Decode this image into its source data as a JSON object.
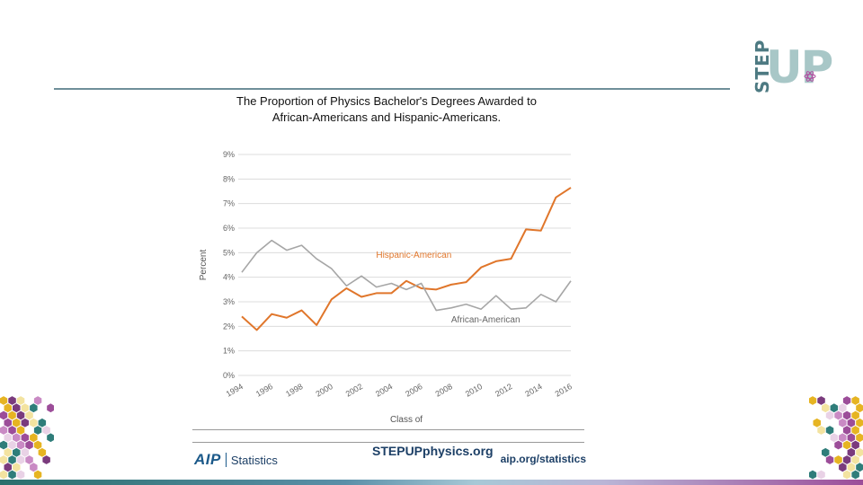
{
  "logo": {
    "step": "STEP",
    "up": "UP"
  },
  "chart_data": {
    "type": "line",
    "title_line1": "The Proportion of Physics Bachelor's Degrees Awarded to",
    "title_line2": "African-Americans and Hispanic-Americans.",
    "xlabel": "Class of",
    "ylabel": "Percent",
    "ylim": [
      0,
      9
    ],
    "yticks": [
      0,
      1,
      2,
      3,
      4,
      5,
      6,
      7,
      8,
      9
    ],
    "ytick_labels": [
      "0%",
      "1%",
      "2%",
      "3%",
      "4%",
      "5%",
      "6%",
      "7%",
      "8%",
      "9%"
    ],
    "xtick_labels": [
      "1994",
      "1996",
      "1998",
      "2000",
      "2002",
      "2004",
      "2006",
      "2008",
      "2010",
      "2012",
      "2014",
      "2016"
    ],
    "grid": true,
    "x": [
      1994,
      1995,
      1996,
      1997,
      1998,
      1999,
      2000,
      2001,
      2002,
      2003,
      2004,
      2005,
      2006,
      2007,
      2008,
      2009,
      2010,
      2011,
      2012,
      2013,
      2014,
      2015,
      2016
    ],
    "series": [
      {
        "name": "Hispanic-American",
        "color": "#e0762b",
        "values": [
          2.4,
          1.85,
          2.5,
          2.35,
          2.65,
          2.05,
          3.1,
          3.55,
          3.2,
          3.35,
          3.35,
          3.85,
          3.55,
          3.5,
          3.7,
          3.8,
          4.4,
          4.65,
          4.75,
          5.95,
          5.9,
          7.25,
          7.65
        ]
      },
      {
        "name": "African-American",
        "color": "#a6a6a6",
        "values": [
          4.2,
          5.0,
          5.5,
          5.1,
          5.3,
          4.75,
          4.35,
          3.65,
          4.05,
          3.6,
          3.75,
          3.5,
          3.75,
          2.65,
          2.75,
          2.9,
          2.7,
          3.25,
          2.7,
          2.75,
          3.3,
          3.0,
          3.85
        ]
      }
    ]
  },
  "footer": {
    "aip_mark": "AIP",
    "aip_stats": "Statistics",
    "center": "STEPUPphysics.org",
    "right": "aip.org/statistics"
  },
  "colors": {
    "teal": "#4d7a82",
    "navy": "#1c3f66",
    "hispanic": "#e0762b",
    "african": "#a6a6a6"
  }
}
